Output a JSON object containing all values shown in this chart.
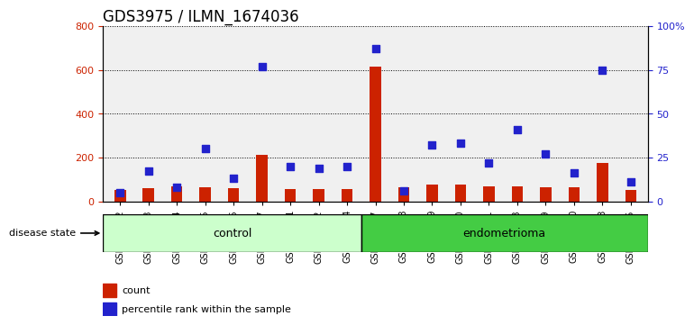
{
  "title": "GDS3975 / ILMN_1674036",
  "samples": [
    "GSM572752",
    "GSM572753",
    "GSM572754",
    "GSM572755",
    "GSM572756",
    "GSM572757",
    "GSM572761",
    "GSM572762",
    "GSM572764",
    "GSM572747",
    "GSM572748",
    "GSM572749",
    "GSM572750",
    "GSM572751",
    "GSM572758",
    "GSM572759",
    "GSM572760",
    "GSM572763",
    "GSM572765"
  ],
  "counts": [
    50,
    60,
    70,
    65,
    60,
    210,
    55,
    55,
    55,
    615,
    65,
    75,
    75,
    70,
    70,
    65,
    65,
    175,
    50
  ],
  "percentiles": [
    5,
    17,
    8,
    30,
    13,
    77,
    20,
    19,
    20,
    87,
    6,
    32,
    33,
    22,
    41,
    27,
    16,
    75,
    11
  ],
  "control_count": 9,
  "endometrioma_count": 10,
  "left_ylim": [
    0,
    800
  ],
  "right_ylim": [
    0,
    100
  ],
  "left_yticks": [
    0,
    200,
    400,
    600,
    800
  ],
  "right_yticks": [
    0,
    25,
    50,
    75,
    100
  ],
  "right_yticklabels": [
    "0",
    "25",
    "50",
    "75",
    "100%"
  ],
  "bar_color": "#cc2200",
  "dot_color": "#2222cc",
  "grid_color": "#000000",
  "background_color": "#f0f0f0",
  "control_label": "control",
  "endometrioma_label": "endometrioma",
  "disease_state_label": "disease state",
  "legend_count_label": "count",
  "legend_percentile_label": "percentile rank within the sample",
  "control_bg": "#ccffcc",
  "endometrioma_bg": "#44cc44",
  "title_fontsize": 12,
  "tick_fontsize": 7,
  "bar_width": 0.4,
  "dot_size": 30
}
